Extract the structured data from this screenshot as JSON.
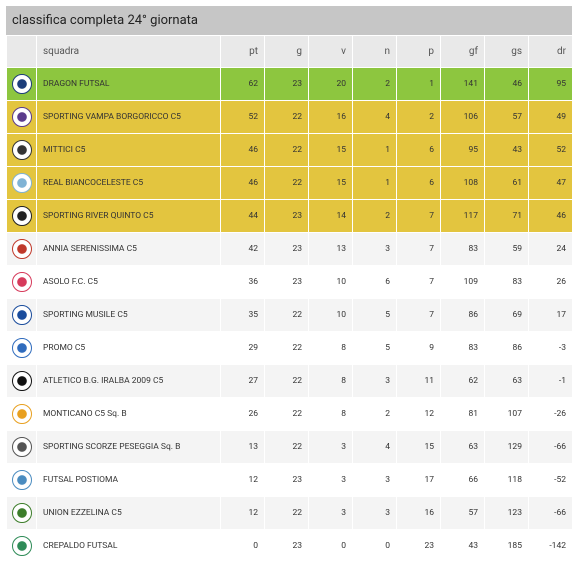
{
  "title": "classifica completa 24° giornata",
  "table": {
    "header": [
      "squadra",
      "pt",
      "g",
      "v",
      "n",
      "p",
      "gf",
      "gs",
      "dr"
    ],
    "rows": [
      [
        "DRAGON FUTSAL",
        62,
        23,
        20,
        2,
        1,
        141,
        46,
        95
      ],
      [
        "SPORTING VAMPA BORGORICCO C5",
        52,
        22,
        16,
        4,
        2,
        106,
        57,
        49
      ],
      [
        "MITTICI C5",
        46,
        22,
        15,
        1,
        6,
        95,
        43,
        52
      ],
      [
        "REAL BIANCOCELESTE C5",
        46,
        22,
        15,
        1,
        6,
        108,
        61,
        47
      ],
      [
        "SPORTING RIVER QUINTO C5",
        44,
        23,
        14,
        2,
        7,
        117,
        71,
        46
      ],
      [
        "ANNIA SERENISSIMA C5",
        42,
        23,
        13,
        3,
        7,
        83,
        59,
        24
      ],
      [
        "ASOLO F.C. C5",
        36,
        23,
        10,
        6,
        7,
        109,
        83,
        26
      ],
      [
        "SPORTING MUSILE C5",
        35,
        22,
        10,
        5,
        7,
        86,
        69,
        17
      ],
      [
        "PROMO C5",
        29,
        22,
        8,
        5,
        9,
        83,
        86,
        -3
      ],
      [
        "ATLETICO B.G. IRALBA 2009 C5",
        27,
        22,
        8,
        3,
        11,
        62,
        63,
        -1
      ],
      [
        "MONTICANO C5 Sq. B",
        26,
        22,
        8,
        2,
        12,
        81,
        107,
        -26
      ],
      [
        "SPORTING SCORZE PESEGGIA Sq. B",
        13,
        22,
        3,
        4,
        15,
        63,
        129,
        -66
      ],
      [
        "FUTSAL POSTIOMA",
        12,
        23,
        3,
        3,
        17,
        66,
        118,
        -52
      ],
      [
        "UNION EZZELINA C5",
        12,
        22,
        3,
        3,
        16,
        57,
        123,
        -66
      ],
      [
        "CREPALDO FUTSAL",
        0,
        23,
        0,
        0,
        23,
        43,
        185,
        -142
      ]
    ]
  }
}
